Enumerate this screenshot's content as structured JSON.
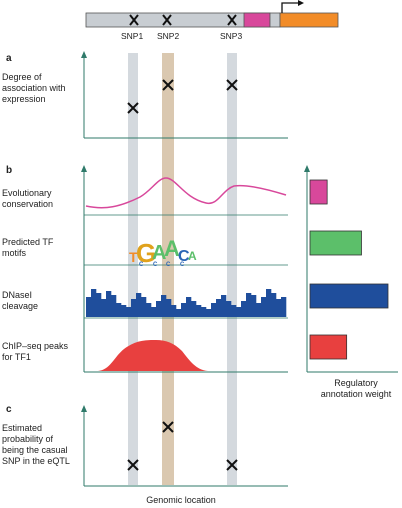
{
  "snps": [
    "SNP1",
    "SNP2",
    "SNP3"
  ],
  "panels": {
    "a": {
      "letter": "a",
      "ylabel": "Degree of association with expression"
    },
    "b": {
      "letter": "b",
      "tracks": [
        {
          "label": "Evolutionary conservation",
          "weight": 0.22,
          "color": "#d8489b"
        },
        {
          "label": "Predicted TF motifs",
          "weight": 0.66,
          "color": "#5cbf6a"
        },
        {
          "label": "DNaseI cleavage",
          "weight": 1.0,
          "color": "#1f4e9c"
        },
        {
          "label": "ChIP–seq peaks for TF1",
          "weight": 0.47,
          "color": "#e8403f"
        }
      ],
      "motif_letters": [
        "T",
        "G",
        "A",
        "A",
        "C",
        "A"
      ],
      "motif_sub_letters": [
        "C",
        "C",
        "C",
        "C"
      ],
      "weight_axis_label": "Regulatory annotation weight"
    },
    "c": {
      "letter": "c",
      "ylabel": "Estimated probability of being the casual SNP in the eQTL",
      "xlabel": "Genomic location"
    }
  },
  "colors": {
    "snp_band": "#c5ccd3",
    "band_tan": "#cdb596",
    "axis": "#2f7a6a",
    "gene_gray": "#c8cdd2",
    "gene_pink": "#d8489b",
    "gene_orange": "#f28c28"
  }
}
